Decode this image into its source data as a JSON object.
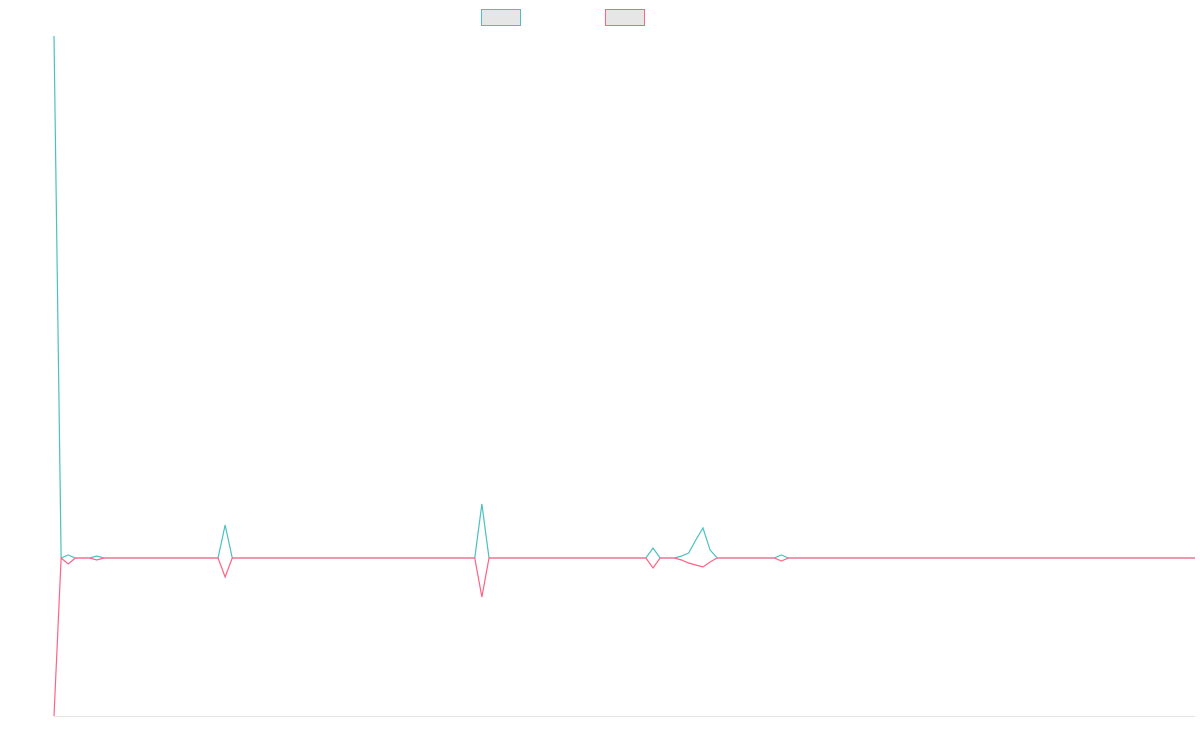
{
  "chart_data": {
    "type": "line",
    "categories": [
      null,
      null,
      null,
      null,
      null,
      null,
      null,
      null,
      null,
      null,
      null,
      null,
      null,
      null,
      null,
      null,
      null,
      null,
      null,
      null,
      null,
      null,
      null,
      null,
      null,
      null,
      null,
      null,
      null,
      null,
      null,
      null,
      null,
      null,
      null,
      null,
      null,
      null,
      null,
      null,
      null,
      null,
      null,
      null,
      null,
      null,
      null,
      null,
      null,
      null,
      null,
      null,
      null,
      null,
      null,
      null,
      null,
      null,
      null,
      null,
      null,
      null,
      null,
      null,
      null,
      null,
      null,
      null,
      null,
      null,
      null,
      null,
      null,
      null,
      null,
      null,
      null,
      null,
      null,
      null,
      null,
      null,
      null,
      null,
      null,
      null,
      null,
      null,
      null,
      null,
      null,
      null,
      null,
      null,
      null,
      null,
      null,
      null,
      null,
      null,
      null,
      null,
      null,
      null,
      null,
      null,
      null,
      null,
      null,
      null,
      null,
      null,
      null,
      null,
      null,
      null,
      null,
      null,
      null,
      null,
      null,
      null,
      null,
      null,
      null,
      null,
      null,
      null,
      null,
      null,
      null,
      null,
      null,
      null,
      null,
      null,
      null,
      null,
      null,
      null,
      null,
      null,
      null,
      null,
      null,
      null,
      null,
      null,
      null,
      null,
      null,
      null,
      null,
      null,
      null,
      null,
      null,
      null,
      null,
      null,
      null
    ],
    "series": [
      {
        "color": "#4bc0c0",
        "values": [
          522,
          0,
          3,
          0,
          0,
          0,
          2,
          0,
          0,
          0,
          0,
          0,
          0,
          0,
          0,
          0,
          0,
          0,
          0,
          0,
          0,
          0,
          0,
          0,
          33,
          0,
          0,
          0,
          0,
          0,
          0,
          0,
          0,
          0,
          0,
          0,
          0,
          0,
          0,
          0,
          0,
          0,
          0,
          0,
          0,
          0,
          0,
          0,
          0,
          0,
          0,
          0,
          0,
          0,
          0,
          0,
          0,
          0,
          0,
          0,
          54,
          0,
          0,
          0,
          0,
          0,
          0,
          0,
          0,
          0,
          0,
          0,
          0,
          0,
          0,
          0,
          0,
          0,
          0,
          0,
          0,
          0,
          0,
          0,
          10,
          0,
          0,
          0,
          2,
          5,
          18,
          30,
          8,
          0,
          0,
          0,
          0,
          0,
          0,
          0,
          0,
          0,
          3,
          0,
          0,
          0,
          0,
          0,
          0,
          0,
          0,
          0,
          0,
          0,
          0,
          0,
          0,
          0,
          0,
          0,
          0,
          0,
          0,
          0,
          0,
          0,
          0,
          0,
          0,
          0,
          0,
          0,
          0,
          0,
          0,
          0,
          0,
          0,
          0,
          0,
          0,
          0,
          0,
          0,
          0,
          0,
          0,
          0,
          0,
          0,
          0,
          0,
          0,
          0,
          0,
          0,
          0,
          0,
          0,
          0,
          0
        ]
      },
      {
        "color": "#ff6384",
        "values": [
          -158,
          0,
          -6,
          0,
          0,
          0,
          -2,
          0,
          0,
          0,
          0,
          0,
          0,
          0,
          0,
          0,
          0,
          0,
          0,
          0,
          0,
          0,
          0,
          0,
          -19,
          0,
          0,
          0,
          0,
          0,
          0,
          0,
          0,
          0,
          0,
          0,
          0,
          0,
          0,
          0,
          0,
          0,
          0,
          0,
          0,
          0,
          0,
          0,
          0,
          0,
          0,
          0,
          0,
          0,
          0,
          0,
          0,
          0,
          0,
          0,
          -39,
          0,
          0,
          0,
          0,
          0,
          0,
          0,
          0,
          0,
          0,
          0,
          0,
          0,
          0,
          0,
          0,
          0,
          0,
          0,
          0,
          0,
          0,
          0,
          -10,
          0,
          0,
          0,
          -2,
          -5,
          -7,
          -9,
          -4,
          0,
          0,
          0,
          0,
          0,
          0,
          0,
          0,
          0,
          -3,
          0,
          0,
          0,
          0,
          0,
          0,
          0,
          0,
          0,
          0,
          0,
          0,
          0,
          0,
          0,
          0,
          0,
          0,
          0,
          0,
          0,
          0,
          0,
          0,
          0,
          0,
          0,
          0,
          0,
          0,
          0,
          0,
          0,
          0,
          0,
          0,
          0,
          0,
          0,
          0,
          0,
          0,
          0,
          0,
          0,
          0,
          0,
          0,
          0,
          0,
          0,
          0,
          0,
          0,
          0,
          0,
          0,
          0
        ]
      }
    ],
    "ylim": [
      -158,
      522
    ]
  }
}
